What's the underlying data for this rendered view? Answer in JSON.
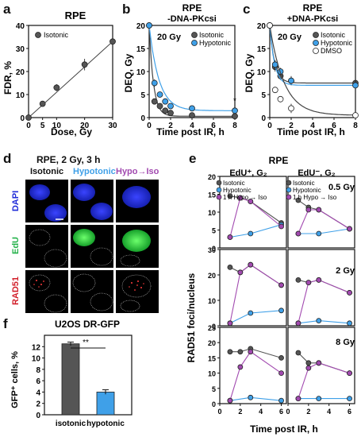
{
  "panel_letters": {
    "a": "a",
    "b": "b",
    "c": "c",
    "d": "d",
    "e": "e",
    "f": "f"
  },
  "colors": {
    "isotonic": "#555555",
    "hypotonic": "#3fa0e8",
    "hypo_to_iso": "#a24ab0",
    "dmso": "#ffffff",
    "dapi": "#1f2bd8",
    "edu": "#24d24a",
    "rad51": "#d21f2a"
  },
  "panel_a": {
    "title": "RPE",
    "xlabel": "Dose, Gy",
    "ylabel": "FDR, %",
    "legend": "Isotonic"
  },
  "panel_b": {
    "title": "RPE",
    "subtitle": "-DNA-PKcsi",
    "dose": "20 Gy",
    "xlabel": "Time post IR, h",
    "ylabel": "DEQ, Gy",
    "legend": [
      "Isotonic",
      "Hypotonic"
    ],
    "asterisk": "*"
  },
  "panel_c": {
    "title": "RPE",
    "subtitle": "+DNA-PKcsi",
    "dose": "20 Gy",
    "xlabel": "Time post IR, h",
    "ylabel": "DEQ, Gy",
    "legend": [
      "Isotonic",
      "Hypotonic",
      "DMSO"
    ]
  },
  "panel_d": {
    "title": "RPE, 2 Gy, 3 h",
    "columns": [
      "Isotonic",
      "Hypotonic",
      "Hypo→Iso"
    ],
    "rows": [
      "DAPI",
      "EdU",
      "RAD51"
    ]
  },
  "panel_e": {
    "title": "RPE",
    "col1": "EdU⁺, G₂",
    "col2": "EdU⁻, G₂",
    "legend": [
      "Isotonic",
      "Hypotonic",
      "1 h Hypo → Iso"
    ],
    "doses": [
      "0.5 Gy",
      "2 Gy",
      "8 Gy"
    ],
    "ylabel": "RAD51 foci/nucleus",
    "xlabel": "Time post IR, h"
  },
  "panel_f": {
    "title": "U2OS DR-GFP",
    "ylabel": "GFP⁺ cells, %",
    "sig": "**"
  },
  "chart_data": [
    {
      "type": "scatter",
      "panel": "a",
      "title": "RPE",
      "xlabel": "Dose, Gy",
      "ylabel": "FDR, %",
      "xlim": [
        0,
        30
      ],
      "ylim": [
        0,
        40
      ],
      "xticks": [
        0,
        5,
        10,
        20,
        30
      ],
      "yticks": [
        0,
        10,
        20,
        30,
        40
      ],
      "series": [
        {
          "name": "Isotonic",
          "x": [
            0,
            5,
            10,
            20,
            30
          ],
          "y": [
            0,
            6,
            13,
            23,
            33
          ],
          "err": [
            0,
            1,
            1.5,
            2.5,
            3
          ]
        }
      ]
    },
    {
      "type": "line",
      "panel": "b",
      "xlim": [
        0,
        8
      ],
      "ylim": [
        0,
        20
      ],
      "xticks": [
        0,
        2,
        4,
        6,
        8
      ],
      "yticks": [
        0,
        5,
        10,
        15,
        20
      ],
      "series": [
        {
          "name": "Isotonic",
          "x": [
            0,
            0.5,
            1,
            1.5,
            2,
            4,
            8
          ],
          "y": [
            20,
            3.5,
            2.5,
            1.5,
            1,
            0.5,
            0.3
          ],
          "err": [
            0,
            0.5,
            0.5,
            0.3,
            0.3,
            0.2,
            0.2
          ]
        },
        {
          "name": "Hypotonic",
          "x": [
            0,
            0.5,
            1,
            1.5,
            2,
            4,
            8
          ],
          "y": [
            20,
            7.5,
            5,
            3.5,
            2.5,
            2,
            1.5
          ],
          "err": [
            0,
            0.8,
            0.5,
            0.4,
            0.3,
            0.3,
            0.3
          ]
        }
      ]
    },
    {
      "type": "line",
      "panel": "c",
      "xlim": [
        0,
        8
      ],
      "ylim": [
        0,
        20
      ],
      "xticks": [
        0,
        2,
        4,
        6,
        8
      ],
      "yticks": [
        0,
        5,
        10,
        15,
        20
      ],
      "series": [
        {
          "name": "Isotonic",
          "x": [
            0,
            0.5,
            1,
            2,
            8
          ],
          "y": [
            20,
            11,
            9,
            8,
            7.5
          ],
          "err": [
            0,
            1,
            0.8,
            1,
            1.2
          ]
        },
        {
          "name": "Hypotonic",
          "x": [
            0,
            0.5,
            1,
            2,
            8
          ],
          "y": [
            20,
            11.5,
            10,
            8,
            7
          ],
          "err": [
            0,
            1,
            0.8,
            0.8,
            1
          ]
        },
        {
          "name": "DMSO",
          "x": [
            0,
            0.5,
            1,
            2,
            8
          ],
          "y": [
            20,
            6,
            4,
            2,
            0.5
          ],
          "err": [
            0,
            0.6,
            0.5,
            1,
            0.3
          ]
        }
      ]
    },
    {
      "type": "line",
      "panel": "e",
      "subplots": [
        {
          "col": "EdU+",
          "dose": "0.5 Gy",
          "ylim": [
            0,
            20
          ],
          "series": [
            {
              "name": "Isotonic",
              "x": [
                1,
                2,
                3,
                6
              ],
              "y": [
                14.5,
                14,
                13,
                7
              ]
            },
            {
              "name": "Hypotonic",
              "x": [
                1,
                3,
                6
              ],
              "y": [
                3,
                4,
                6.5
              ]
            },
            {
              "name": "1 h Hypo → Iso",
              "x": [
                1,
                2,
                3,
                6
              ],
              "y": [
                3,
                14,
                13,
                6
              ]
            }
          ]
        },
        {
          "col": "EdU-",
          "dose": "0.5 Gy",
          "ylim": [
            0,
            15
          ],
          "series": [
            {
              "name": "Isotonic",
              "x": [
                1,
                2,
                3,
                6
              ],
              "y": [
                10,
                8.5,
                8,
                4
              ]
            },
            {
              "name": "Hypotonic",
              "x": [
                1,
                3,
                6
              ],
              "y": [
                3,
                3,
                4
              ]
            },
            {
              "name": "1 h Hypo → Iso",
              "x": [
                1,
                2,
                3,
                6
              ],
              "y": [
                3,
                8,
                8,
                4
              ]
            }
          ]
        },
        {
          "col": "EdU+",
          "dose": "2 Gy",
          "ylim": [
            0,
            30
          ],
          "series": [
            {
              "name": "Isotonic",
              "x": [
                1,
                2,
                3,
                6
              ],
              "y": [
                23,
                21,
                24,
                16
              ]
            },
            {
              "name": "Hypotonic",
              "x": [
                1,
                3,
                6
              ],
              "y": [
                1,
                5,
                6
              ]
            },
            {
              "name": "1 h Hypo → Iso",
              "x": [
                1,
                2,
                3,
                6
              ],
              "y": [
                1,
                21,
                24,
                16
              ]
            }
          ]
        },
        {
          "col": "EdU-",
          "dose": "2 Gy",
          "ylim": [
            0,
            30
          ],
          "series": [
            {
              "name": "Isotonic",
              "x": [
                1,
                2,
                3,
                6
              ],
              "y": [
                18,
                17,
                18,
                13
              ]
            },
            {
              "name": "Hypotonic",
              "x": [
                1,
                3,
                6
              ],
              "y": [
                1,
                2,
                1
              ]
            },
            {
              "name": "1 h Hypo → Iso",
              "x": [
                1,
                2,
                3,
                6
              ],
              "y": [
                1,
                17,
                18,
                13
              ]
            }
          ]
        },
        {
          "col": "EdU+",
          "dose": "8 Gy",
          "ylim": [
            0,
            25
          ],
          "series": [
            {
              "name": "Isotonic",
              "x": [
                1,
                2,
                3,
                6
              ],
              "y": [
                17,
                17,
                18,
                15
              ]
            },
            {
              "name": "Hypotonic",
              "x": [
                1,
                3,
                6
              ],
              "y": [
                1,
                2,
                1
              ]
            },
            {
              "name": "1 h Hypo → Iso",
              "x": [
                1,
                2,
                3,
                6
              ],
              "y": [
                1,
                12,
                17,
                10
              ]
            }
          ]
        },
        {
          "col": "EdU-",
          "dose": "8 Gy",
          "ylim": [
            0,
            15
          ],
          "series": [
            {
              "name": "Isotonic",
              "x": [
                1,
                2,
                3,
                6
              ],
              "y": [
                10,
                8,
                8,
                6
              ]
            },
            {
              "name": "Hypotonic",
              "x": [
                1,
                3,
                6
              ],
              "y": [
                1,
                1,
                1
              ]
            },
            {
              "name": "1 h Hypo → Iso",
              "x": [
                1,
                2,
                3,
                6
              ],
              "y": [
                1,
                7,
                8,
                6
              ]
            }
          ]
        }
      ]
    },
    {
      "type": "bar",
      "panel": "f",
      "title": "U2OS DR-GFP",
      "categories": [
        "isotonic",
        "hypotonic"
      ],
      "values": [
        12.5,
        4
      ],
      "err": [
        0.3,
        0.4
      ],
      "ylim": [
        0,
        14
      ],
      "yticks": [
        0,
        2,
        4,
        6,
        8,
        10,
        12
      ]
    }
  ]
}
